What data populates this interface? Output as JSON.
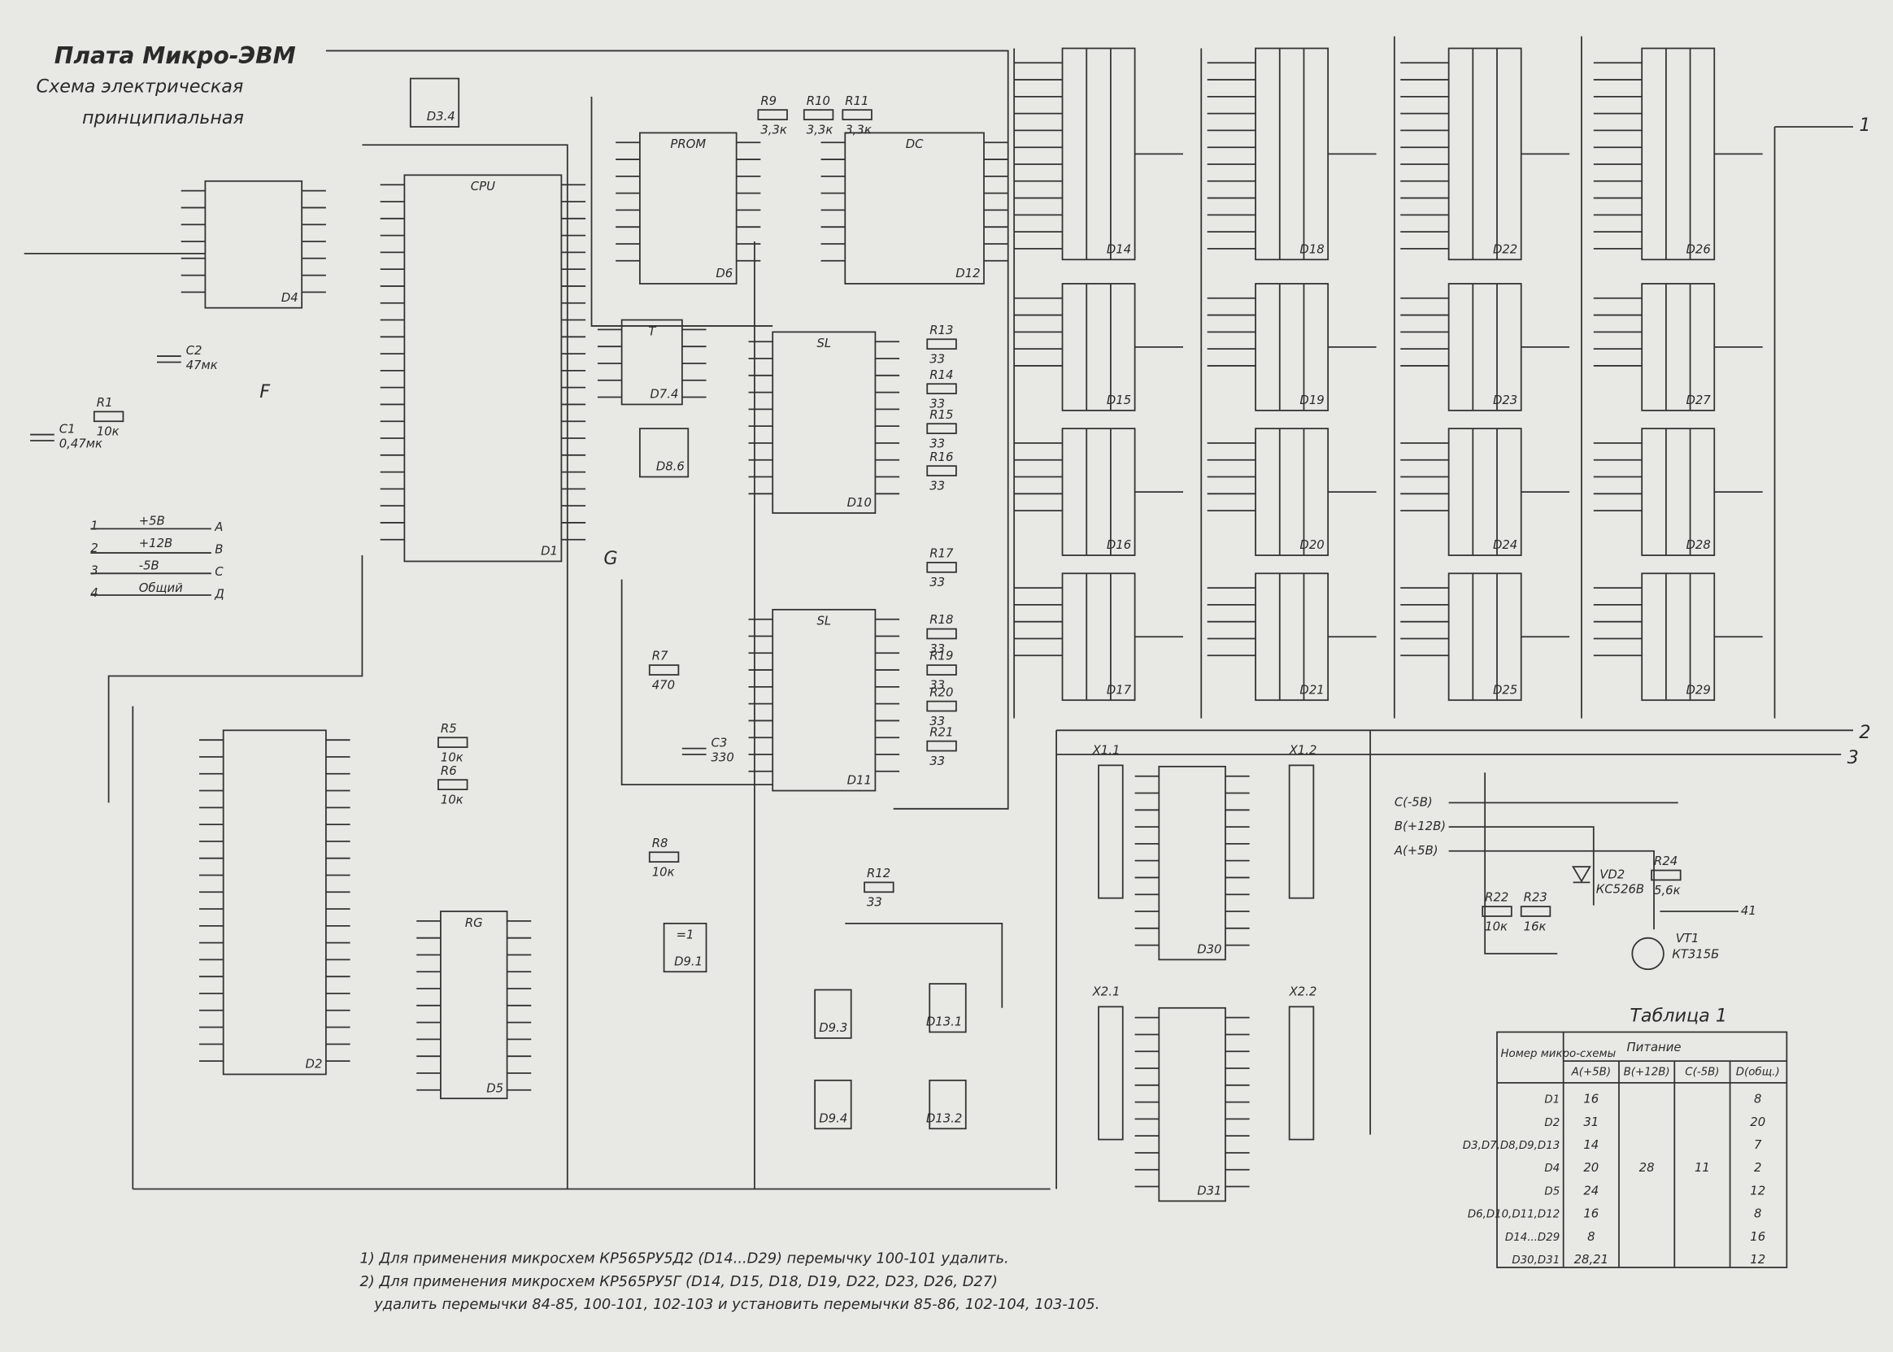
{
  "header": {
    "title": "Плата Микро-ЭВМ",
    "subtitle": "Схема электрическая",
    "subtitle2": "принципиальная"
  },
  "chips": [
    {
      "name": "D1",
      "type": "CPU"
    },
    {
      "name": "D2"
    },
    {
      "name": "D3.4"
    },
    {
      "name": "D4"
    },
    {
      "name": "D5",
      "type": "RG"
    },
    {
      "name": "D6",
      "type": "PROM"
    },
    {
      "name": "D7.4",
      "type": "T"
    },
    {
      "name": "D8.6"
    },
    {
      "name": "D10",
      "type": "SL"
    },
    {
      "name": "D11",
      "type": "SL"
    },
    {
      "name": "D12",
      "type": "DC"
    },
    {
      "name": "D9.1",
      "type": "=1"
    },
    {
      "name": "D9.3"
    },
    {
      "name": "D13.1"
    },
    {
      "name": "D9.4"
    },
    {
      "name": "D13.2"
    },
    {
      "name": "D30"
    },
    {
      "name": "D31"
    },
    {
      "name": "D14"
    },
    {
      "name": "D15"
    },
    {
      "name": "D16"
    },
    {
      "name": "D17"
    },
    {
      "name": "D18"
    },
    {
      "name": "D19"
    },
    {
      "name": "D20"
    },
    {
      "name": "D21"
    },
    {
      "name": "D22"
    },
    {
      "name": "D23"
    },
    {
      "name": "D24"
    },
    {
      "name": "D25"
    },
    {
      "name": "D26"
    },
    {
      "name": "D27"
    },
    {
      "name": "D28"
    },
    {
      "name": "D29"
    }
  ],
  "connectors": [
    "X1.1",
    "X1.2",
    "X2.1",
    "X2.2"
  ],
  "resistors": [
    {
      "name": "R1",
      "value": "10к"
    },
    {
      "name": "R5",
      "value": "10к"
    },
    {
      "name": "R6",
      "value": "10к"
    },
    {
      "name": "R7",
      "value": "470"
    },
    {
      "name": "R8",
      "value": "10к"
    },
    {
      "name": "R9",
      "value": "3,3к"
    },
    {
      "name": "R10",
      "value": "3,3к"
    },
    {
      "name": "R11",
      "value": "3,3к"
    },
    {
      "name": "R12",
      "value": "33"
    },
    {
      "name": "R13",
      "value": "33"
    },
    {
      "name": "R14",
      "value": "33"
    },
    {
      "name": "R15",
      "value": "33"
    },
    {
      "name": "R16",
      "value": "33"
    },
    {
      "name": "R17",
      "value": "33"
    },
    {
      "name": "R18",
      "value": "33"
    },
    {
      "name": "R19",
      "value": "33"
    },
    {
      "name": "R20",
      "value": "33"
    },
    {
      "name": "R21",
      "value": "33"
    },
    {
      "name": "R22",
      "value": "10к"
    },
    {
      "name": "R23",
      "value": "16к"
    },
    {
      "name": "R24",
      "value": "5,6к"
    }
  ],
  "capacitors": [
    {
      "name": "C1",
      "value": "0,47мк"
    },
    {
      "name": "C2",
      "value": "47мк"
    },
    {
      "name": "C3",
      "value": "330"
    }
  ],
  "power_legend": [
    {
      "pin": "1",
      "voltage": "+5В",
      "net": "A"
    },
    {
      "pin": "2",
      "voltage": "+12В",
      "net": "B"
    },
    {
      "pin": "3",
      "voltage": "-5В",
      "net": "C"
    },
    {
      "pin": "4",
      "voltage": "Общий",
      "net": "Д"
    }
  ],
  "regulator": {
    "inputs": [
      "C(-5В)",
      "B(+12В)",
      "A(+5В)"
    ],
    "diode": "VD2",
    "diode_type": "КС526В",
    "transistor": "VT1",
    "transistor_type": "КТ315Б",
    "output": "41"
  },
  "nets": {
    "bus2": "2",
    "bus3": "3",
    "out1": "1",
    "net_g": "G",
    "net_f": "F"
  },
  "table": {
    "title": "Таблица 1",
    "head_chip": "Номер микро-схемы",
    "head_power": "Питание",
    "columns": [
      "A(+5В)",
      "B(+12В)",
      "C(-5В)",
      "D(общ.)"
    ],
    "rows": [
      {
        "chip": "D1",
        "a": "16",
        "d": "8"
      },
      {
        "chip": "D2",
        "a": "31",
        "d": "20"
      },
      {
        "chip": "D3,D7,D8,D9,D13",
        "a": "14",
        "d": "7"
      },
      {
        "chip": "D4",
        "a": "20",
        "b": "28",
        "c": "11",
        "d": "2"
      },
      {
        "chip": "D5",
        "a": "24",
        "d": "12"
      },
      {
        "chip": "D6,D10,D11,D12",
        "a": "16",
        "d": "8"
      },
      {
        "chip": "D14...D29",
        "a": "8",
        "d": "16"
      },
      {
        "chip": "D30,D31",
        "a": "28,21",
        "d": "12"
      }
    ]
  },
  "notes": [
    "1) Для применения микросхем КР565РУ5Д2 (D14...D29) перемычку 100-101 удалить.",
    "2) Для применения микросхем КР565РУ5Г (D14, D15, D18, D19, D22, D23, D26, D27)",
    "удалить перемычки 84-85, 100-101, 102-103 и установить перемычки 85-86, 102-104, 103-105."
  ]
}
